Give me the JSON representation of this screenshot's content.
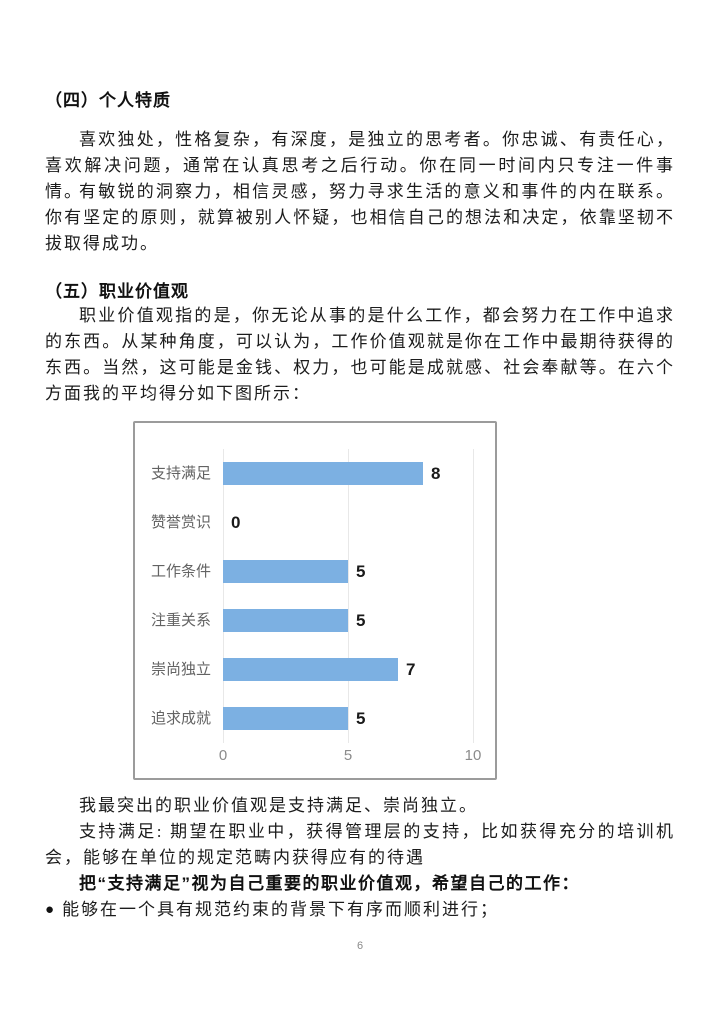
{
  "page": {
    "number": "6"
  },
  "section4": {
    "heading": "（四）个人特质",
    "para1": "喜欢独处，性格复杂，有深度，是独立的思考者。你忠诚、有责任心，喜欢解决问题，通常在认真思考之后行动。你在同一时间内只专注一件事情。",
    "para2": "有敏锐的洞察力，相信灵感，努力寻求生活的意义和事件的内在联系。你有坚定的原则，就算被别人怀疑，也相信自己的想法和决定，依靠坚韧不拔取得成功。"
  },
  "section5": {
    "heading": "（五）职业价值观",
    "para1": "职业价值观指的是，你无论从事的是什么工作，都会努力在工作中追求的东西。从某种角度，可以认为，工作价值观就是你在工作中最期待获得的东西。当然，这可能是金钱、权力，也可能是成就感、社会奉献等。在六个方面我的平均得分如下图所示：",
    "para2": "我最突出的职业价值观是支持满足、崇尚独立。",
    "para3": "支持满足: 期望在职业中，获得管理层的支持，比如获得充分的培训机会，能够在单位的规定范畴内获得应有的待遇",
    "para4_bold": "把“支持满足”视为自己重要的职业价值观，希望自己的工作：",
    "bullet_glyph": "●",
    "bullet1": "能够在一个具有规范约束的背景下有序而顺利进行；"
  },
  "chart_data": {
    "type": "bar",
    "orientation": "horizontal",
    "categories": [
      "支持满足",
      "赞誉赏识",
      "工作条件",
      "注重关系",
      "崇尚独立",
      "追求成就"
    ],
    "values": [
      8,
      0,
      5,
      5,
      7,
      5
    ],
    "xticks": [
      0,
      5,
      10
    ],
    "xlim": [
      0,
      10
    ],
    "grid": true,
    "legend": false,
    "bar_color": "#7cb0e2",
    "title": "",
    "xlabel": "",
    "ylabel": ""
  }
}
